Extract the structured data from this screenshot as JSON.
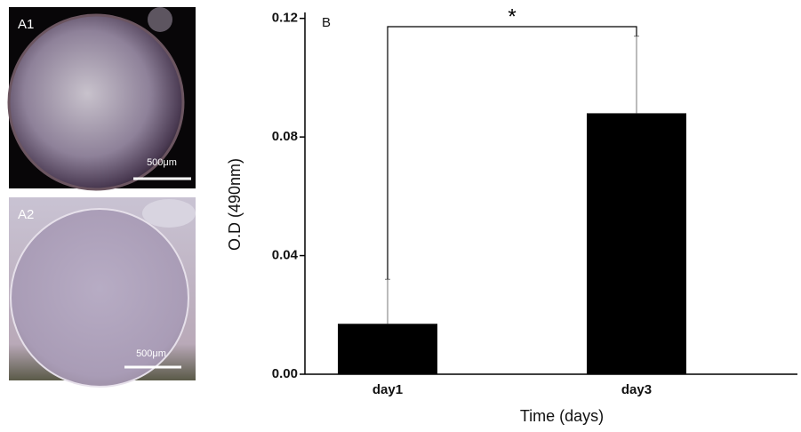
{
  "images": [
    {
      "label": "A1",
      "scale": "500μm"
    },
    {
      "label": "A2",
      "scale": "500μm"
    }
  ],
  "chart_data": {
    "type": "bar",
    "panel": "B",
    "annotation": "*",
    "xlabel": "Time (days)",
    "ylabel": "O.D (490nm)",
    "categories": [
      "day1",
      "day3"
    ],
    "series": [
      {
        "color": "#000000",
        "values": [
          0.017,
          0.088
        ],
        "errors": [
          0.015,
          0.026
        ]
      }
    ],
    "ylim": [
      0,
      0.122
    ],
    "yticks": [
      {
        "value": 0,
        "label": "0.00"
      },
      0.04,
      0.08,
      0.12
    ]
  }
}
